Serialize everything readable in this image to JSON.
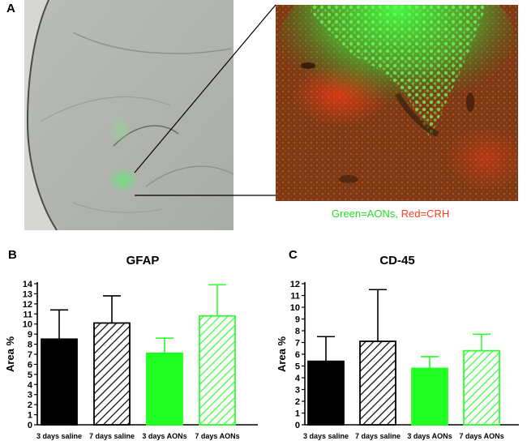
{
  "panel_labels": {
    "a": "A",
    "b": "B",
    "c": "C"
  },
  "caption": {
    "green_part": "Green=AONs,",
    "red_part": "Red=CRH",
    "green_color": "#22dd22",
    "red_color": "#ff3b1f"
  },
  "chart_data": [
    {
      "type": "bar",
      "title": "GFAP",
      "ylabel": "Area %",
      "xlabel": "",
      "ylim": [
        0,
        14
      ],
      "yticks": [
        0,
        1,
        2,
        3,
        4,
        5,
        6,
        7,
        8,
        9,
        10,
        11,
        12,
        13,
        14
      ],
      "categories": [
        "3 days saline",
        "7 days saline",
        "3 days AONs",
        "7 days AONs"
      ],
      "values": [
        8.5,
        10.1,
        7.1,
        10.8
      ],
      "errors_upper": [
        11.4,
        12.8,
        8.6,
        13.9
      ],
      "fills": [
        "solid-black",
        "hatch-black",
        "solid-green",
        "hatch-green"
      ]
    },
    {
      "type": "bar",
      "title": "CD-45",
      "ylabel": "Area %",
      "xlabel": "",
      "ylim": [
        0,
        12
      ],
      "yticks": [
        0,
        1,
        2,
        3,
        4,
        5,
        6,
        7,
        8,
        9,
        10,
        11,
        12
      ],
      "categories": [
        "3 days saline",
        "7 days saline",
        "3 days AONs",
        "7 days AONs"
      ],
      "values": [
        5.4,
        7.1,
        4.8,
        6.3
      ],
      "errors_upper": [
        7.5,
        11.5,
        5.8,
        7.7
      ],
      "fills": [
        "solid-black",
        "hatch-black",
        "solid-green",
        "hatch-green"
      ]
    }
  ]
}
